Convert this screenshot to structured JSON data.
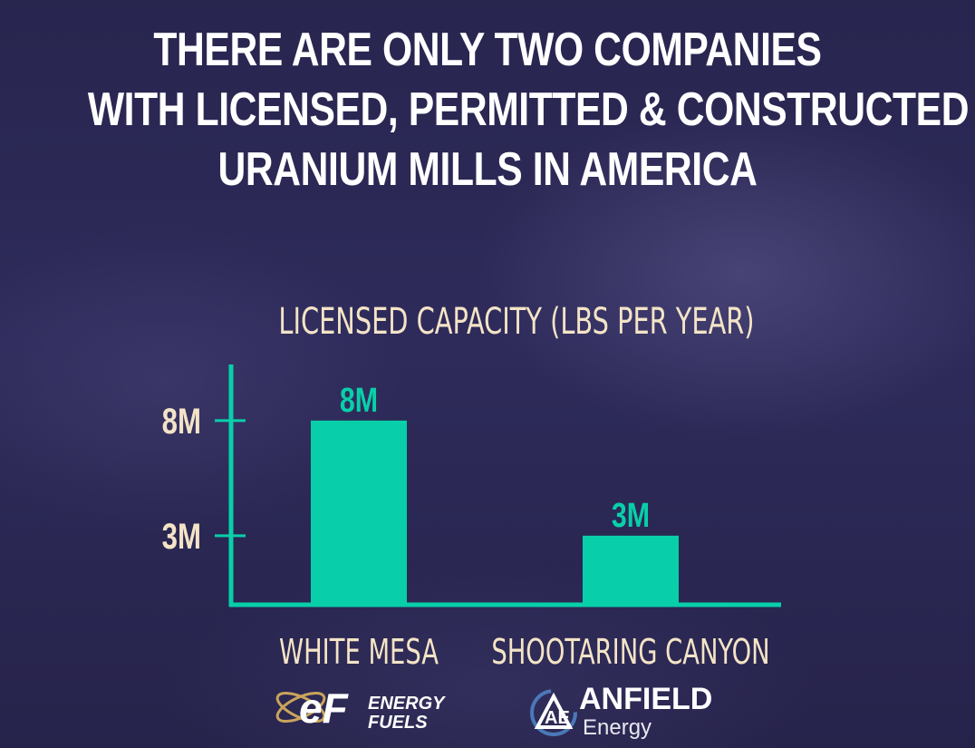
{
  "headline": {
    "line1": "THERE ARE ONLY TWO COMPANIES",
    "line2": "WITH LICENSED, PERMITTED & CONSTRUCTED",
    "line3": "URANIUM MILLS IN AMERICA"
  },
  "chart_data": {
    "type": "bar",
    "title": "LICENSED CAPACITY (LBS PER YEAR)",
    "categories": [
      "WHITE MESA",
      "SHOOTARING CANYON"
    ],
    "values": [
      8,
      3
    ],
    "value_labels": [
      "8M",
      "3M"
    ],
    "yticks": [
      3,
      8
    ],
    "ytick_labels": [
      "3M",
      "8M"
    ],
    "unit": "million lbs per year",
    "ylim": [
      0,
      10.2
    ],
    "grid": false,
    "colors": {
      "bar": "#08cfa9",
      "axis": "#08cfa9",
      "tick_label": "#f4e4c6",
      "value_label": "#08cfa9",
      "category_label": "#f4e4c6"
    }
  },
  "logos": {
    "energy_fuels": {
      "mark": "eF",
      "line1": "ENERGY",
      "line2": "FUELS",
      "icon": "atom-orbit-icon"
    },
    "anfield": {
      "mark": "AE",
      "line1": "ANFIELD",
      "line2": "Energy",
      "icon": "triangle-ae-icon"
    }
  }
}
